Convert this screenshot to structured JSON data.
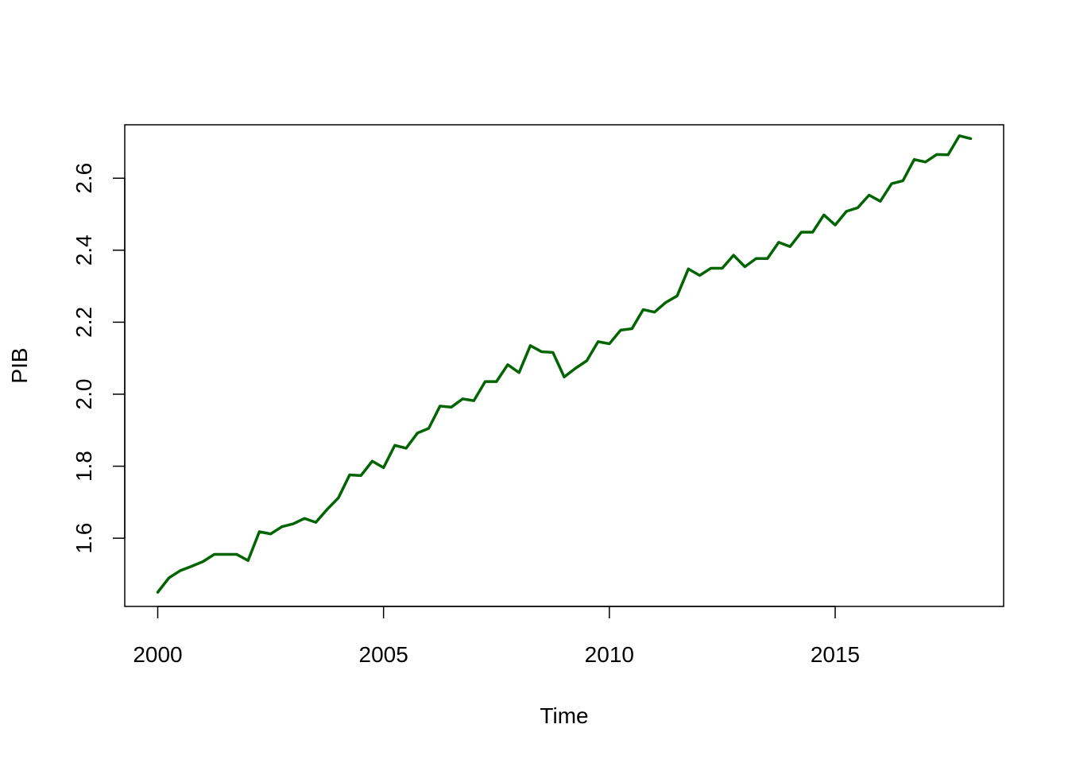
{
  "chart_data": {
    "type": "line",
    "xlabel": "Time",
    "ylabel": "PIB",
    "xlim": [
      1999.27,
      2018.73
    ],
    "ylim": [
      1.4105,
      2.7484
    ],
    "x_ticks": [
      2000,
      2005,
      2010,
      2015
    ],
    "x_tick_labels": [
      "2000",
      "2005",
      "2010",
      "2015"
    ],
    "y_ticks": [
      1.6,
      1.8,
      2.0,
      2.2,
      2.4,
      2.6
    ],
    "y_tick_labels": [
      "1.6",
      "1.8",
      "2.0",
      "2.2",
      "2.4",
      "2.6"
    ],
    "grid": false,
    "line_color": "#006400",
    "series": [
      {
        "x": [
          2000.0,
          2000.25,
          2000.5,
          2000.75,
          2001.0,
          2001.25,
          2001.5,
          2001.75,
          2002.0,
          2002.25,
          2002.5,
          2002.75,
          2003.0,
          2003.25,
          2003.5,
          2003.75,
          2004.0,
          2004.25,
          2004.5,
          2004.75,
          2005.0,
          2005.25,
          2005.5,
          2005.75,
          2006.0,
          2006.25,
          2006.5,
          2006.75,
          2007.0,
          2007.25,
          2007.5,
          2007.75,
          2008.0,
          2008.25,
          2008.5,
          2008.75,
          2009.0,
          2009.25,
          2009.5,
          2009.75,
          2010.0,
          2010.25,
          2010.5,
          2010.75,
          2011.0,
          2011.25,
          2011.5,
          2011.75,
          2012.0,
          2012.25,
          2012.5,
          2012.75,
          2013.0,
          2013.25,
          2013.5,
          2013.75,
          2014.0,
          2014.25,
          2014.5,
          2014.75,
          2015.0,
          2015.25,
          2015.5,
          2015.75,
          2016.0,
          2016.25,
          2016.5,
          2016.75,
          2017.0,
          2017.25,
          2017.5,
          2017.75,
          2018.0
        ],
        "values": [
          1.45,
          1.49,
          1.51,
          1.522,
          1.535,
          1.555,
          1.555,
          1.555,
          1.538,
          1.618,
          1.612,
          1.632,
          1.64,
          1.655,
          1.644,
          1.68,
          1.712,
          1.776,
          1.774,
          1.814,
          1.796,
          1.858,
          1.85,
          1.892,
          1.905,
          1.967,
          1.964,
          1.987,
          1.982,
          2.035,
          2.035,
          2.082,
          2.06,
          2.135,
          2.118,
          2.116,
          2.048,
          2.072,
          2.093,
          2.146,
          2.14,
          2.178,
          2.182,
          2.235,
          2.228,
          2.255,
          2.273,
          2.348,
          2.33,
          2.35,
          2.35,
          2.386,
          2.354,
          2.377,
          2.377,
          2.422,
          2.41,
          2.45,
          2.45,
          2.498,
          2.47,
          2.508,
          2.518,
          2.553,
          2.536,
          2.585,
          2.593,
          2.652,
          2.645,
          2.666,
          2.665,
          2.718,
          2.71
        ]
      }
    ]
  }
}
